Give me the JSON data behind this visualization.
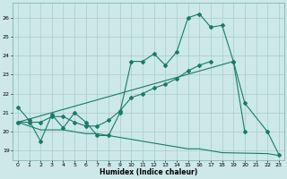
{
  "xlabel": "Humidex (Indice chaleur)",
  "background_color": "#cce8e8",
  "grid_color": "#aacccc",
  "line_color": "#1a7a6a",
  "xlim": [
    -0.5,
    23.5
  ],
  "ylim": [
    18.5,
    26.8
  ],
  "yticks": [
    19,
    20,
    21,
    22,
    23,
    24,
    25,
    26
  ],
  "xticks": [
    0,
    1,
    2,
    3,
    4,
    5,
    6,
    7,
    8,
    9,
    10,
    11,
    12,
    13,
    14,
    15,
    16,
    17,
    18,
    19,
    20,
    21,
    22,
    23
  ],
  "series1_x": [
    0,
    1,
    2,
    3,
    4,
    5,
    6,
    7,
    8,
    9,
    10,
    11,
    12,
    13,
    14,
    15,
    16,
    17,
    18,
    19,
    20
  ],
  "series1_y": [
    21.3,
    20.6,
    19.5,
    20.9,
    20.2,
    21.0,
    20.5,
    19.8,
    19.8,
    21.0,
    23.7,
    23.7,
    24.1,
    23.5,
    24.2,
    26.0,
    26.2,
    25.5,
    25.6,
    23.7,
    20.0
  ],
  "series2_x": [
    0,
    1,
    2,
    3,
    4,
    5,
    6,
    7,
    8,
    9,
    10,
    11,
    12,
    13,
    14,
    15,
    16,
    17
  ],
  "series2_y": [
    20.5,
    20.5,
    20.5,
    20.8,
    20.8,
    20.5,
    20.3,
    20.3,
    20.6,
    21.1,
    21.8,
    22.0,
    22.3,
    22.5,
    22.8,
    23.2,
    23.5,
    23.7
  ],
  "series3_x": [
    0,
    1,
    2,
    3,
    4,
    5,
    6,
    7,
    8,
    9,
    10,
    11,
    12,
    13,
    14,
    15,
    16,
    17,
    18,
    22,
    23
  ],
  "series3_y": [
    20.5,
    20.3,
    20.1,
    20.1,
    20.1,
    20.0,
    19.9,
    19.9,
    19.8,
    19.7,
    19.6,
    19.5,
    19.4,
    19.3,
    19.2,
    19.1,
    19.1,
    19.0,
    18.9,
    18.85,
    18.75
  ],
  "series4_x": [
    0,
    19,
    20,
    22,
    23
  ],
  "series4_y": [
    20.5,
    23.7,
    21.5,
    20.0,
    18.8
  ]
}
